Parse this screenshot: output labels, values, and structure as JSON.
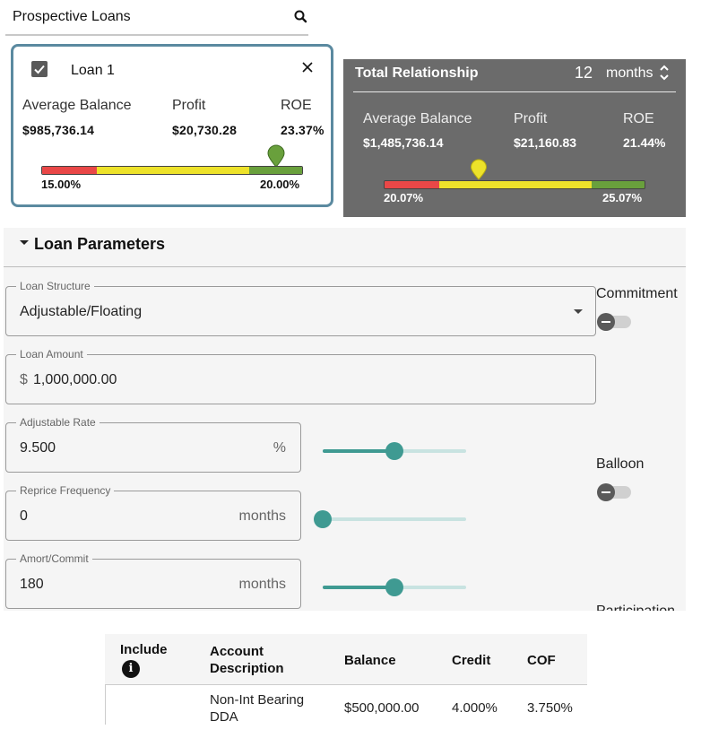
{
  "prospective_loans": {
    "title": "Prospective Loans",
    "search_icon": "search-icon"
  },
  "loan_card": {
    "name": "Loan 1",
    "checked": true,
    "metrics": [
      {
        "label": "Average Balance",
        "value": "$985,736.14"
      },
      {
        "label": "Profit",
        "value": "$20,730.28"
      },
      {
        "label": "ROE",
        "value": "23.37%"
      }
    ],
    "gauge": {
      "low_label": "15.00%",
      "high_label": "20.00%",
      "marker_color": "#69a03c"
    }
  },
  "total_relationship": {
    "title": "Total Relationship",
    "months_value": "12",
    "months_label": "months",
    "metrics": [
      {
        "label": "Average Balance",
        "value": "$1,485,736.14"
      },
      {
        "label": "Profit",
        "value": "$21,160.83"
      },
      {
        "label": "ROE",
        "value": "21.44%"
      }
    ],
    "gauge": {
      "low_label": "20.07%",
      "high_label": "25.07%",
      "marker_color": "#ede22a"
    }
  },
  "loan_parameters": {
    "title": "Loan Parameters",
    "loan_structure": {
      "label": "Loan Structure",
      "value": "Adjustable/Floating"
    },
    "loan_amount": {
      "label": "Loan Amount",
      "prefix": "$",
      "value": "1,000,000.00"
    },
    "adjustable_rate": {
      "label": "Adjustable Rate",
      "value": "9.500",
      "suffix": "%",
      "slider_fraction": 0.5
    },
    "reprice_frequency": {
      "label": "Reprice Frequency",
      "value": "0",
      "suffix": "months",
      "slider_fraction": 0.0
    },
    "amort_commit": {
      "label": "Amort/Commit",
      "value": "180",
      "suffix": "months",
      "slider_fraction": 0.5
    },
    "commitment": {
      "label": "Commitment",
      "on": false
    },
    "balloon": {
      "label": "Balloon",
      "on": false
    },
    "participation": {
      "label": "Participation"
    }
  },
  "accounts_table": {
    "headers": {
      "include": "Include",
      "account_line1": "Account",
      "account_line2": "Description",
      "balance": "Balance",
      "credit": "Credit",
      "cof": "COF"
    },
    "info_icon": "i",
    "rows": [
      {
        "account_line1": "Non-Int Bearing",
        "account_line2": "DDA",
        "balance": "$500,000.00",
        "credit": "4.000%",
        "cof": "3.750%"
      }
    ]
  },
  "colors": {
    "accent_teal": "#3f9a92",
    "card_border": "#5b8aa0",
    "panel_gray": "#6b6b6b"
  }
}
